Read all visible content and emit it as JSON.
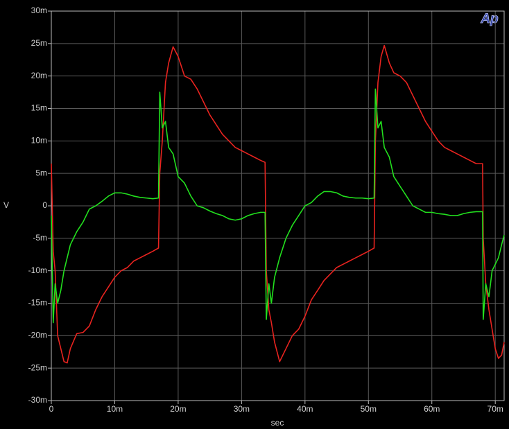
{
  "chart_data": {
    "type": "line",
    "logo": "Ap",
    "xlabel": "sec",
    "ylabel": "V",
    "grid": true,
    "background": "#000000",
    "xlim": [
      0,
      0.0714
    ],
    "ylim": [
      -0.03,
      0.03
    ],
    "xticks": [
      0,
      {
        "value": 0.01,
        "label": "10m"
      },
      {
        "value": 0.02,
        "label": "20m"
      },
      {
        "value": 0.03,
        "label": "30m"
      },
      {
        "value": 0.04,
        "label": "40m"
      },
      {
        "value": 0.05,
        "label": "50m"
      },
      {
        "value": 0.06,
        "label": "60m"
      },
      {
        "value": 0.07,
        "label": "70m"
      }
    ],
    "yticks": [
      {
        "value": -0.03,
        "label": "-30m"
      },
      {
        "value": -0.025,
        "label": "-25m"
      },
      {
        "value": -0.02,
        "label": "-20m"
      },
      {
        "value": -0.015,
        "label": "-15m"
      },
      {
        "value": -0.01,
        "label": "-10m"
      },
      {
        "value": -0.005,
        "label": "-5m"
      },
      0,
      {
        "value": 0.005,
        "label": "5m"
      },
      {
        "value": 0.01,
        "label": "10m"
      },
      {
        "value": 0.015,
        "label": "15m"
      },
      {
        "value": 0.02,
        "label": "20m"
      },
      {
        "value": 0.025,
        "label": "25m"
      },
      {
        "value": 0.03,
        "label": "30m"
      }
    ],
    "x": [
      0,
      0.0003,
      0.0006,
      0.001,
      0.0015,
      0.002,
      0.0025,
      0.003,
      0.004,
      0.005,
      0.006,
      0.007,
      0.008,
      0.009,
      0.01,
      0.011,
      0.012,
      0.013,
      0.014,
      0.015,
      0.016,
      0.0169,
      0.0171,
      0.0175,
      0.018,
      0.0185,
      0.0192,
      0.02,
      0.021,
      0.022,
      0.023,
      0.024,
      0.025,
      0.026,
      0.027,
      0.028,
      0.029,
      0.03,
      0.031,
      0.032,
      0.033,
      0.0337,
      0.0339,
      0.0343,
      0.0347,
      0.0352,
      0.036,
      0.037,
      0.038,
      0.039,
      0.04,
      0.041,
      0.042,
      0.043,
      0.044,
      0.045,
      0.046,
      0.047,
      0.048,
      0.049,
      0.05,
      0.0509,
      0.0511,
      0.0515,
      0.052,
      0.0525,
      0.0533,
      0.054,
      0.055,
      0.056,
      0.057,
      0.058,
      0.059,
      0.06,
      0.061,
      0.062,
      0.063,
      0.064,
      0.065,
      0.066,
      0.067,
      0.068,
      0.0681,
      0.0685,
      0.069,
      0.0695,
      0.07,
      0.0705,
      0.071,
      0.0714
    ],
    "series": [
      {
        "color": "#e8231f",
        "values": [
          0.0065,
          -0.007,
          -0.01,
          -0.02,
          -0.022,
          -0.024,
          -0.0242,
          -0.022,
          -0.0197,
          -0.0195,
          -0.0185,
          -0.016,
          -0.014,
          -0.0125,
          -0.011,
          -0.01,
          -0.0095,
          -0.0085,
          -0.008,
          -0.0075,
          -0.007,
          -0.0065,
          0.005,
          0.01,
          0.019,
          0.022,
          0.0245,
          0.023,
          0.02,
          0.0195,
          0.018,
          0.016,
          0.014,
          0.0125,
          0.011,
          0.01,
          0.009,
          0.0085,
          0.008,
          0.0075,
          0.007,
          0.0067,
          -0.01,
          -0.016,
          -0.018,
          -0.021,
          -0.024,
          -0.022,
          -0.02,
          -0.019,
          -0.017,
          -0.0145,
          -0.013,
          -0.0115,
          -0.0105,
          -0.0095,
          -0.009,
          -0.0085,
          -0.008,
          -0.0075,
          -0.007,
          -0.0065,
          0.01,
          0.019,
          0.023,
          0.0247,
          0.022,
          0.0205,
          0.02,
          0.019,
          0.017,
          0.015,
          0.013,
          0.0115,
          0.01,
          0.009,
          0.0085,
          0.008,
          0.0075,
          0.007,
          0.0065,
          0.0065,
          -0.005,
          -0.012,
          -0.016,
          -0.019,
          -0.022,
          -0.0235,
          -0.023,
          -0.021
        ]
      },
      {
        "color": "#22e01e",
        "values": [
          -0.0015,
          -0.018,
          -0.012,
          -0.015,
          -0.013,
          -0.01,
          -0.008,
          -0.006,
          -0.004,
          -0.0025,
          -0.0005,
          0,
          0.0007,
          0.0015,
          0.002,
          0.002,
          0.0018,
          0.0015,
          0.0013,
          0.0012,
          0.0011,
          0.0012,
          0.0175,
          0.012,
          0.013,
          0.009,
          0.008,
          0.0045,
          0.0035,
          0.0015,
          0,
          -0.0003,
          -0.0008,
          -0.0012,
          -0.0015,
          -0.002,
          -0.0022,
          -0.002,
          -0.0015,
          -0.0012,
          -0.001,
          -0.001,
          -0.0175,
          -0.012,
          -0.015,
          -0.011,
          -0.008,
          -0.005,
          -0.003,
          -0.0015,
          0,
          0.0005,
          0.0015,
          0.0022,
          0.0022,
          0.002,
          0.0015,
          0.0013,
          0.0012,
          0.0012,
          0.0011,
          0.0012,
          0.018,
          0.012,
          0.013,
          0.009,
          0.0075,
          0.0045,
          0.003,
          0.0015,
          0,
          -0.0005,
          -0.001,
          -0.001,
          -0.0012,
          -0.0013,
          -0.0015,
          -0.0015,
          -0.0012,
          -0.001,
          -0.0009,
          -0.0009,
          -0.0175,
          -0.012,
          -0.014,
          -0.01,
          -0.009,
          -0.008,
          -0.006,
          -0.0045
        ]
      }
    ]
  }
}
